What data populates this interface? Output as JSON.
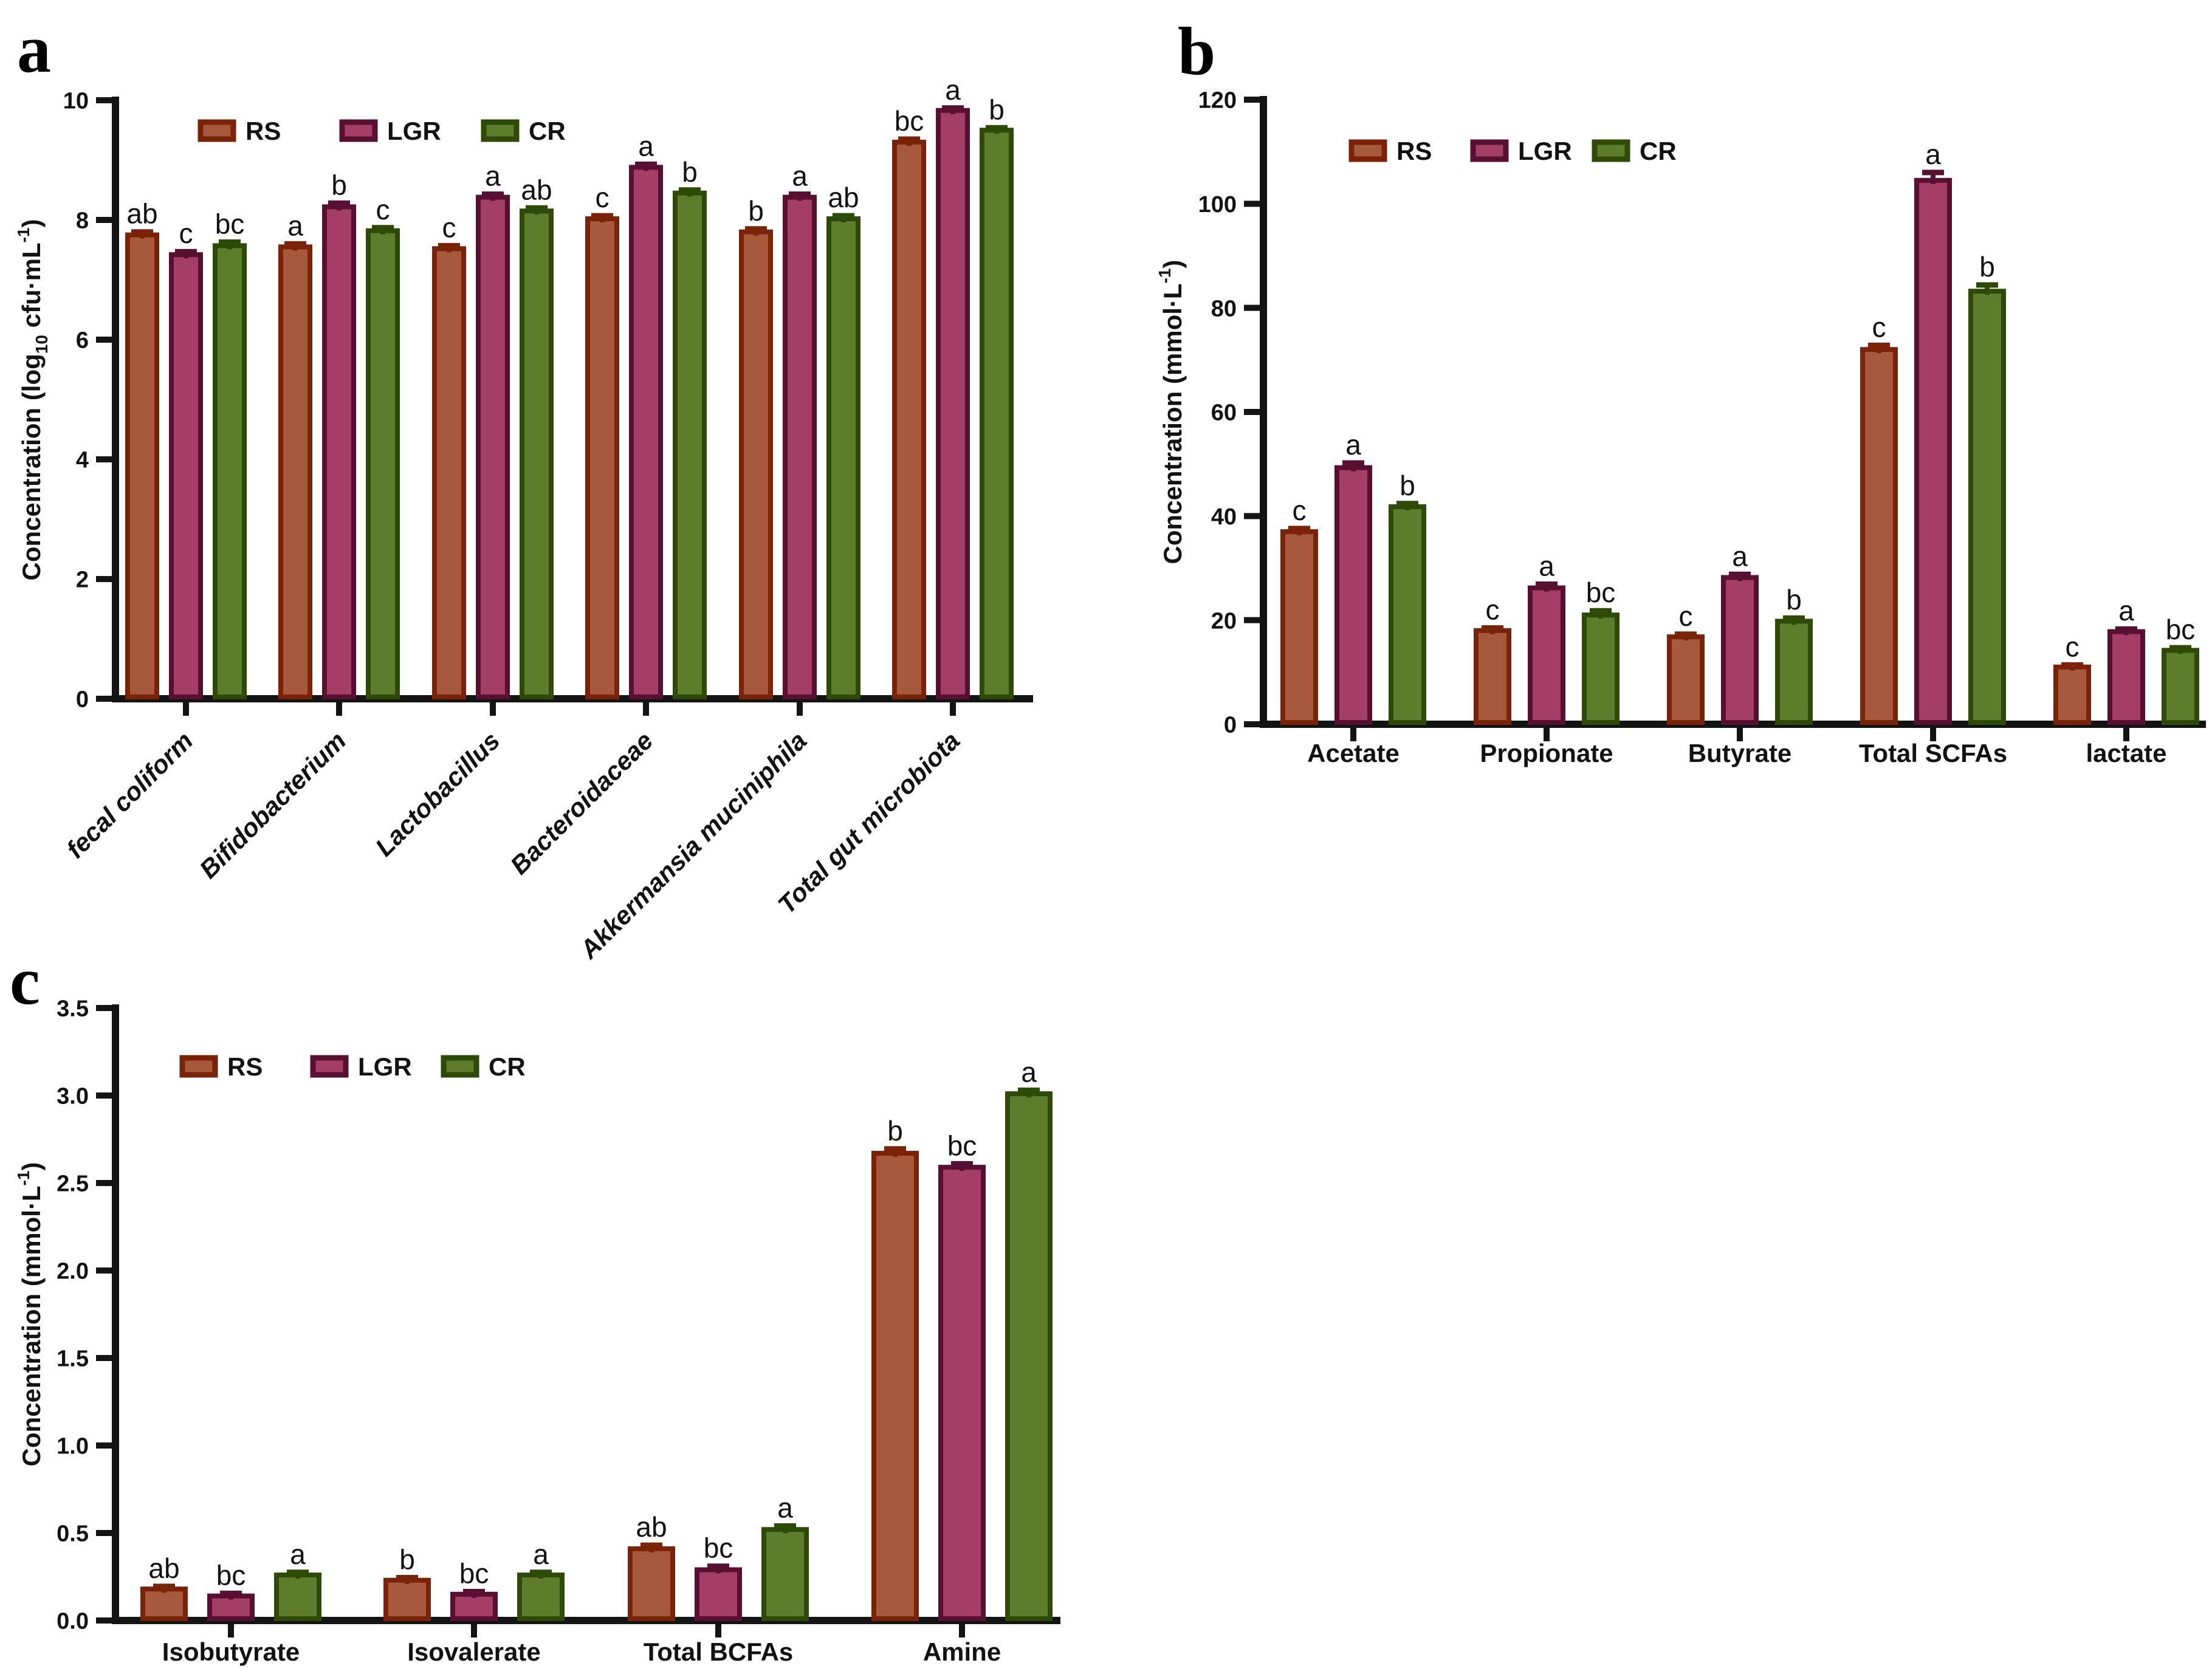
{
  "figure": {
    "background": "#ffffff",
    "axis_color": "#141414",
    "letter_color": "#121212"
  },
  "chart_data": [
    {
      "id": "a",
      "panel_label": "a",
      "type": "bar",
      "ylabel_text": "Concentration (log₁₀ cfu·mL⁻¹)",
      "ylabel_parts": [
        {
          "text": "Concentration (log",
          "style": "normal"
        },
        {
          "text": "10",
          "style": "sub"
        },
        {
          "text": " cfu·mL",
          "style": "normal"
        },
        {
          "text": "-1",
          "style": "sup"
        },
        {
          "text": ")",
          "style": "normal"
        }
      ],
      "ylim": [
        0,
        10
      ],
      "yticks": [
        "0",
        "2",
        "4",
        "6",
        "8",
        "10"
      ],
      "grid": false,
      "legend_position": "top-inside",
      "categories": [
        "fecal coliform",
        "Bifidobacterium",
        "Lactobacillus",
        "Bacteroidaceae",
        "Akkermansia muciniphila",
        "Total gut microbiota"
      ],
      "category_label_style": "rotated-italic",
      "series": [
        {
          "name": "RS",
          "fill": "#A6593C",
          "stroke": "#7A2309",
          "values": [
            7.75,
            7.55,
            7.52,
            8.02,
            7.8,
            9.3
          ],
          "errors": [
            0.05,
            0.05,
            0.05,
            0.05,
            0.05,
            0.05
          ],
          "letters": [
            "ab",
            "a",
            "c",
            "c",
            "b",
            "bc"
          ]
        },
        {
          "name": "LGR",
          "fill": "#A43E67",
          "stroke": "#570F32",
          "values": [
            7.42,
            8.22,
            8.38,
            8.88,
            8.38,
            9.83
          ],
          "errors": [
            0.05,
            0.06,
            0.05,
            0.05,
            0.05,
            0.04
          ],
          "letters": [
            "c",
            "b",
            "a",
            "a",
            "a",
            "a"
          ]
        },
        {
          "name": "CR",
          "fill": "#5E7D2C",
          "stroke": "#2E4A07",
          "values": [
            7.57,
            7.82,
            8.15,
            8.45,
            8.02,
            9.5
          ],
          "errors": [
            0.06,
            0.05,
            0.05,
            0.05,
            0.05,
            0.04
          ],
          "letters": [
            "bc",
            "c",
            "ab",
            "b",
            "ab",
            "b"
          ]
        }
      ]
    },
    {
      "id": "b",
      "panel_label": "b",
      "type": "bar",
      "ylabel_text": "Concentration (mmol·L⁻¹)",
      "ylabel_parts": [
        {
          "text": "Concentration (mmol·L",
          "style": "normal"
        },
        {
          "text": "-1",
          "style": "sup"
        },
        {
          "text": ")",
          "style": "normal"
        }
      ],
      "ylim": [
        0,
        120
      ],
      "yticks": [
        "0",
        "20",
        "40",
        "60",
        "80",
        "100",
        "120"
      ],
      "grid": false,
      "legend_position": "top-inside",
      "categories": [
        "Acetate",
        "Propionate",
        "Butyrate",
        "Total SCFAs",
        "lactate"
      ],
      "category_label_style": "horizontal",
      "series": [
        {
          "name": "RS",
          "fill": "#A6593C",
          "stroke": "#7A2309",
          "values": [
            37.0,
            18.0,
            16.8,
            72.0,
            11.0
          ],
          "errors": [
            0.6,
            0.5,
            0.5,
            0.8,
            0.4
          ],
          "letters": [
            "c",
            "c",
            "c",
            "c",
            "c"
          ]
        },
        {
          "name": "LGR",
          "fill": "#A43E67",
          "stroke": "#570F32",
          "values": [
            49.3,
            26.2,
            28.2,
            104.5,
            17.8
          ],
          "errors": [
            0.9,
            0.7,
            0.6,
            1.5,
            0.5
          ],
          "letters": [
            "a",
            "a",
            "a",
            "a",
            "a"
          ]
        },
        {
          "name": "CR",
          "fill": "#5E7D2C",
          "stroke": "#2E4A07",
          "values": [
            41.8,
            21.0,
            19.8,
            83.2,
            14.2
          ],
          "errors": [
            0.6,
            0.8,
            0.6,
            1.2,
            0.5
          ],
          "letters": [
            "b",
            "bc",
            "b",
            "b",
            "bc"
          ]
        }
      ]
    },
    {
      "id": "c",
      "panel_label": "c",
      "type": "bar",
      "ylabel_text": "Concentration (mmol·L⁻¹)",
      "ylabel_parts": [
        {
          "text": "Concentration (mmol·L",
          "style": "normal"
        },
        {
          "text": "-1",
          "style": "sup"
        },
        {
          "text": ")",
          "style": "normal"
        }
      ],
      "ylim": [
        0,
        3.5
      ],
      "yticks": [
        "0.0",
        "0.5",
        "1.0",
        "1.5",
        "2.0",
        "2.5",
        "3.0",
        "3.5"
      ],
      "grid": false,
      "legend_position": "top-inside",
      "categories": [
        "Isobutyrate",
        "Isovalerate",
        "Total BCFAs",
        "Amine"
      ],
      "category_label_style": "horizontal",
      "series": [
        {
          "name": "RS",
          "fill": "#A6593C",
          "stroke": "#7A2309",
          "values": [
            0.18,
            0.23,
            0.41,
            2.67
          ],
          "errors": [
            0.015,
            0.015,
            0.02,
            0.025
          ],
          "letters": [
            "ab",
            "b",
            "ab",
            "b"
          ]
        },
        {
          "name": "LGR",
          "fill": "#A43E67",
          "stroke": "#570F32",
          "values": [
            0.14,
            0.15,
            0.29,
            2.59
          ],
          "errors": [
            0.015,
            0.015,
            0.02,
            0.02
          ],
          "letters": [
            "bc",
            "bc",
            "bc",
            "bc"
          ]
        },
        {
          "name": "CR",
          "fill": "#5E7D2C",
          "stroke": "#2E4A07",
          "values": [
            0.26,
            0.26,
            0.52,
            3.01
          ],
          "errors": [
            0.015,
            0.015,
            0.02,
            0.02
          ],
          "letters": [
            "a",
            "a",
            "a",
            "a"
          ]
        }
      ]
    }
  ]
}
